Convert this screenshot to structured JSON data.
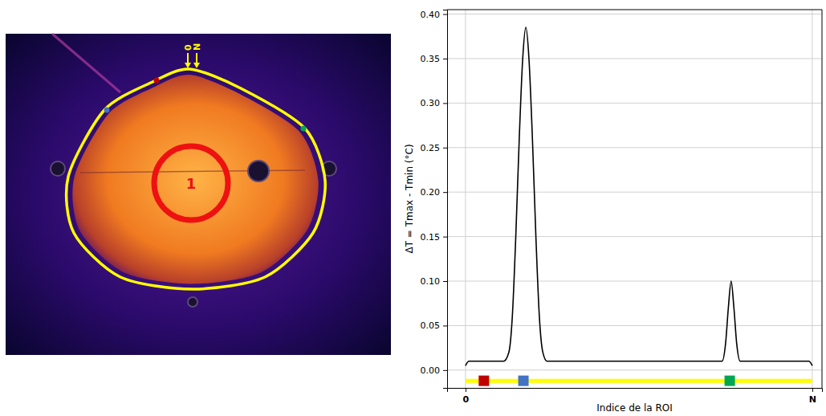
{
  "chart_data": {
    "type": "line",
    "ylabel": "ΔT = Tmax - Tmin (°C)",
    "xlabel": "Indice de la ROI",
    "xlim": [
      -0.053,
      1.028
    ],
    "ylim": [
      -0.02,
      0.405
    ],
    "xticks": [
      {
        "value": 0,
        "label": "0"
      },
      {
        "value": 1,
        "label": "N"
      }
    ],
    "yticks": [
      {
        "value": 0,
        "label": "0.00"
      },
      {
        "value": 0.05,
        "label": "0.05"
      },
      {
        "value": 0.1,
        "label": "0.10"
      },
      {
        "value": 0.15,
        "label": "0.15"
      },
      {
        "value": 0.2,
        "label": "0.20"
      },
      {
        "value": 0.25,
        "label": "0.25"
      },
      {
        "value": 0.3,
        "label": "0.30"
      },
      {
        "value": 0.35,
        "label": "0.35"
      },
      {
        "value": 0.4,
        "label": "0.40"
      }
    ],
    "grid": true,
    "series": [
      {
        "type": "line",
        "color": "#ffff00",
        "x": [
          0,
          1
        ],
        "values": [
          -0.012,
          -0.012
        ]
      },
      {
        "type": "line",
        "color": "#000000",
        "x": [
          0,
          0.01,
          0.11,
          0.125,
          0.135,
          0.145,
          0.155,
          0.165,
          0.174,
          0.183,
          0.193,
          0.203,
          0.213,
          0.223,
          0.235,
          0.74,
          0.75,
          0.758,
          0.766,
          0.774,
          0.782,
          0.792,
          0.99,
          1
        ],
        "values": [
          0.005,
          0.01,
          0.01,
          0.02,
          0.06,
          0.15,
          0.26,
          0.35,
          0.385,
          0.35,
          0.26,
          0.15,
          0.06,
          0.02,
          0.01,
          0.01,
          0.03,
          0.07,
          0.1,
          0.07,
          0.03,
          0.01,
          0.01,
          0.005
        ]
      },
      {
        "type": "scatter",
        "marker": "square",
        "colors": [
          "#c00000",
          "#4472c4",
          "#00a651"
        ],
        "x": [
          0.053,
          0.167,
          0.762
        ],
        "values": [
          -0.012,
          -0.012,
          -0.012
        ]
      }
    ]
  },
  "image": {
    "roi_label": "1",
    "start_label": "0",
    "end_label": "N"
  }
}
